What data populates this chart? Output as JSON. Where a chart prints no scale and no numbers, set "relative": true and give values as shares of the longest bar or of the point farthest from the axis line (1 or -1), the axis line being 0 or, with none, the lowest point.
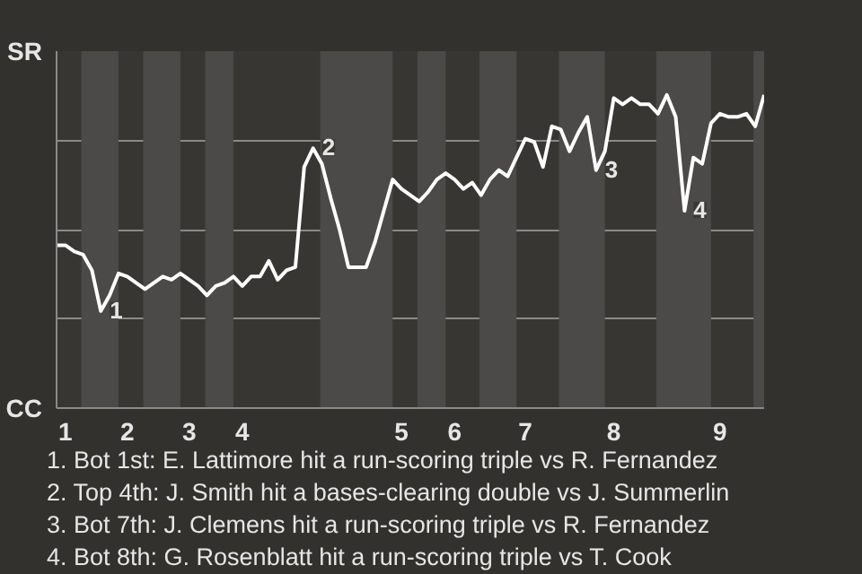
{
  "chart_data": {
    "type": "line",
    "relative": true,
    "categories": [
      null,
      "1",
      null,
      null,
      null,
      null,
      null,
      null,
      "2",
      null,
      null,
      null,
      null,
      null,
      null,
      "3",
      null,
      null,
      null,
      null,
      null,
      "4",
      null,
      null,
      null,
      null,
      null,
      null,
      null,
      null,
      null,
      null,
      null,
      null,
      null,
      null,
      null,
      null,
      null,
      "5",
      null,
      null,
      null,
      null,
      null,
      "6",
      null,
      null,
      null,
      null,
      null,
      null,
      null,
      "7",
      null,
      null,
      null,
      null,
      null,
      null,
      null,
      null,
      null,
      "8",
      null,
      null,
      null,
      null,
      null,
      null,
      null,
      null,
      null,
      null,
      null,
      "9",
      null,
      null,
      null,
      null,
      null
    ],
    "series": [
      {
        "color": "#ffffff",
        "values": [
          0.52,
          0.52,
          0.5,
          0.49,
          0.44,
          0.31,
          0.36,
          0.43,
          0.42,
          0.4,
          0.38,
          0.4,
          0.42,
          0.41,
          0.43,
          0.41,
          0.39,
          0.36,
          0.39,
          0.4,
          0.42,
          0.39,
          0.42,
          0.42,
          0.47,
          0.41,
          0.44,
          0.45,
          0.77,
          0.83,
          0.78,
          0.67,
          0.57,
          0.45,
          0.45,
          0.45,
          0.53,
          0.63,
          0.73,
          0.7,
          0.68,
          0.66,
          0.69,
          0.73,
          0.75,
          0.73,
          0.7,
          0.72,
          0.68,
          0.73,
          0.76,
          0.74,
          0.8,
          0.86,
          0.85,
          0.77,
          0.9,
          0.89,
          0.82,
          0.88,
          0.93,
          0.76,
          0.82,
          0.99,
          0.97,
          0.99,
          0.97,
          0.97,
          0.94,
          1.0,
          0.93,
          0.63,
          0.8,
          0.78,
          0.91,
          0.94,
          0.93,
          0.93,
          0.94,
          0.9,
          1.0
        ],
        "name": null
      }
    ],
    "grid": "y",
    "marker": "none",
    "line_style": "solid",
    "annotations": [
      "SR",
      "CC",
      {
        "text": "1",
        "y": 0.31
      },
      {
        "text": "2",
        "y": 0.83
      },
      {
        "text": "3",
        "y": 0.76
      },
      {
        "text": "4",
        "y": 0.63
      },
      "1. Bot 1st: E. Lattimore hit a run-scoring triple vs R. Fernandez",
      "2. Top 4th: J. Smith hit a bases-clearing double vs J. Summerlin",
      "3. Bot 7th: J. Clemens hit a run-scoring triple vs R. Fernandez",
      "4. Bot 8th: G. Rosenblatt hit a run-scoring triple vs T. Cook"
    ]
  }
}
